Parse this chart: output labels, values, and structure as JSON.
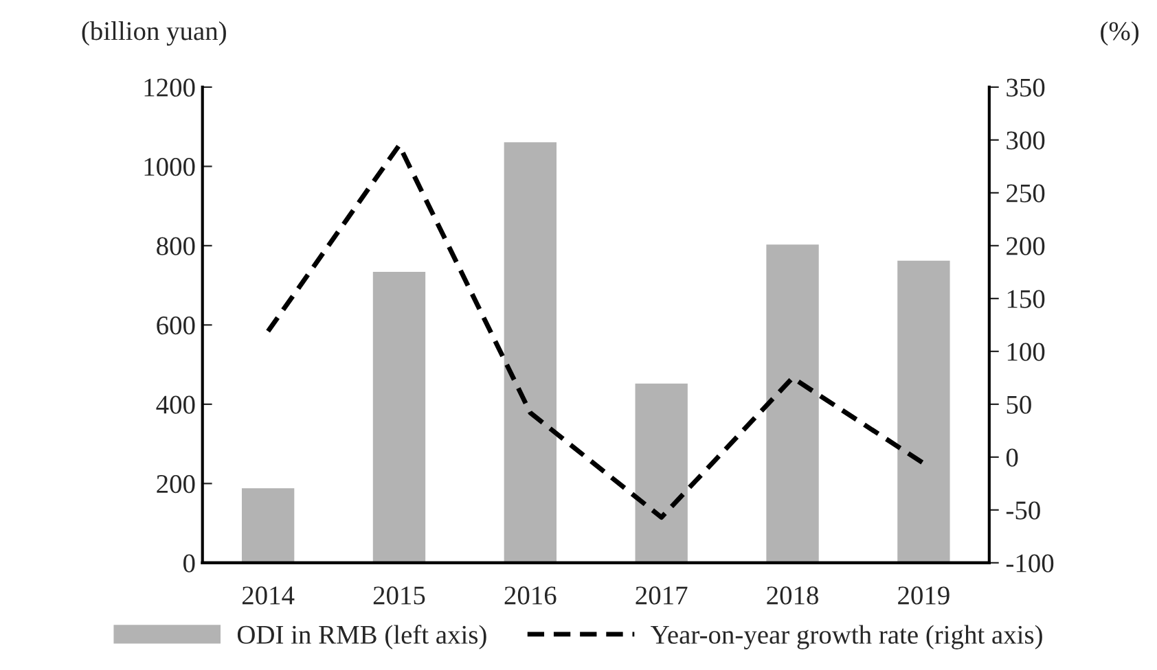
{
  "chart_data": {
    "type": "bar",
    "ylabel": "(billion yuan)",
    "y2label": "(%)",
    "categories": [
      "2014",
      "2015",
      "2016",
      "2017",
      "2018",
      "2019"
    ],
    "series": [
      {
        "name": "ODI in RMB (left axis)",
        "color": "#b3b3b3",
        "values": [
          188,
          734,
          1061,
          452,
          803,
          762
        ]
      },
      {
        "name": "Year-on-year growth rate (right axis)",
        "type": "line",
        "axis": "y2",
        "color": "#000000",
        "line_style": "dashed",
        "values": [
          119,
          295,
          42,
          -57,
          75,
          -6
        ]
      }
    ],
    "ylim": [
      0,
      1200
    ],
    "yticks": [
      0,
      200,
      400,
      600,
      800,
      1000,
      1200
    ],
    "y2lim": [
      -100,
      350
    ],
    "y2ticks": [
      -100,
      -50,
      0,
      50,
      100,
      150,
      200,
      250,
      300,
      350
    ],
    "grid": false,
    "legend": "bottom",
    "marker": "none"
  }
}
